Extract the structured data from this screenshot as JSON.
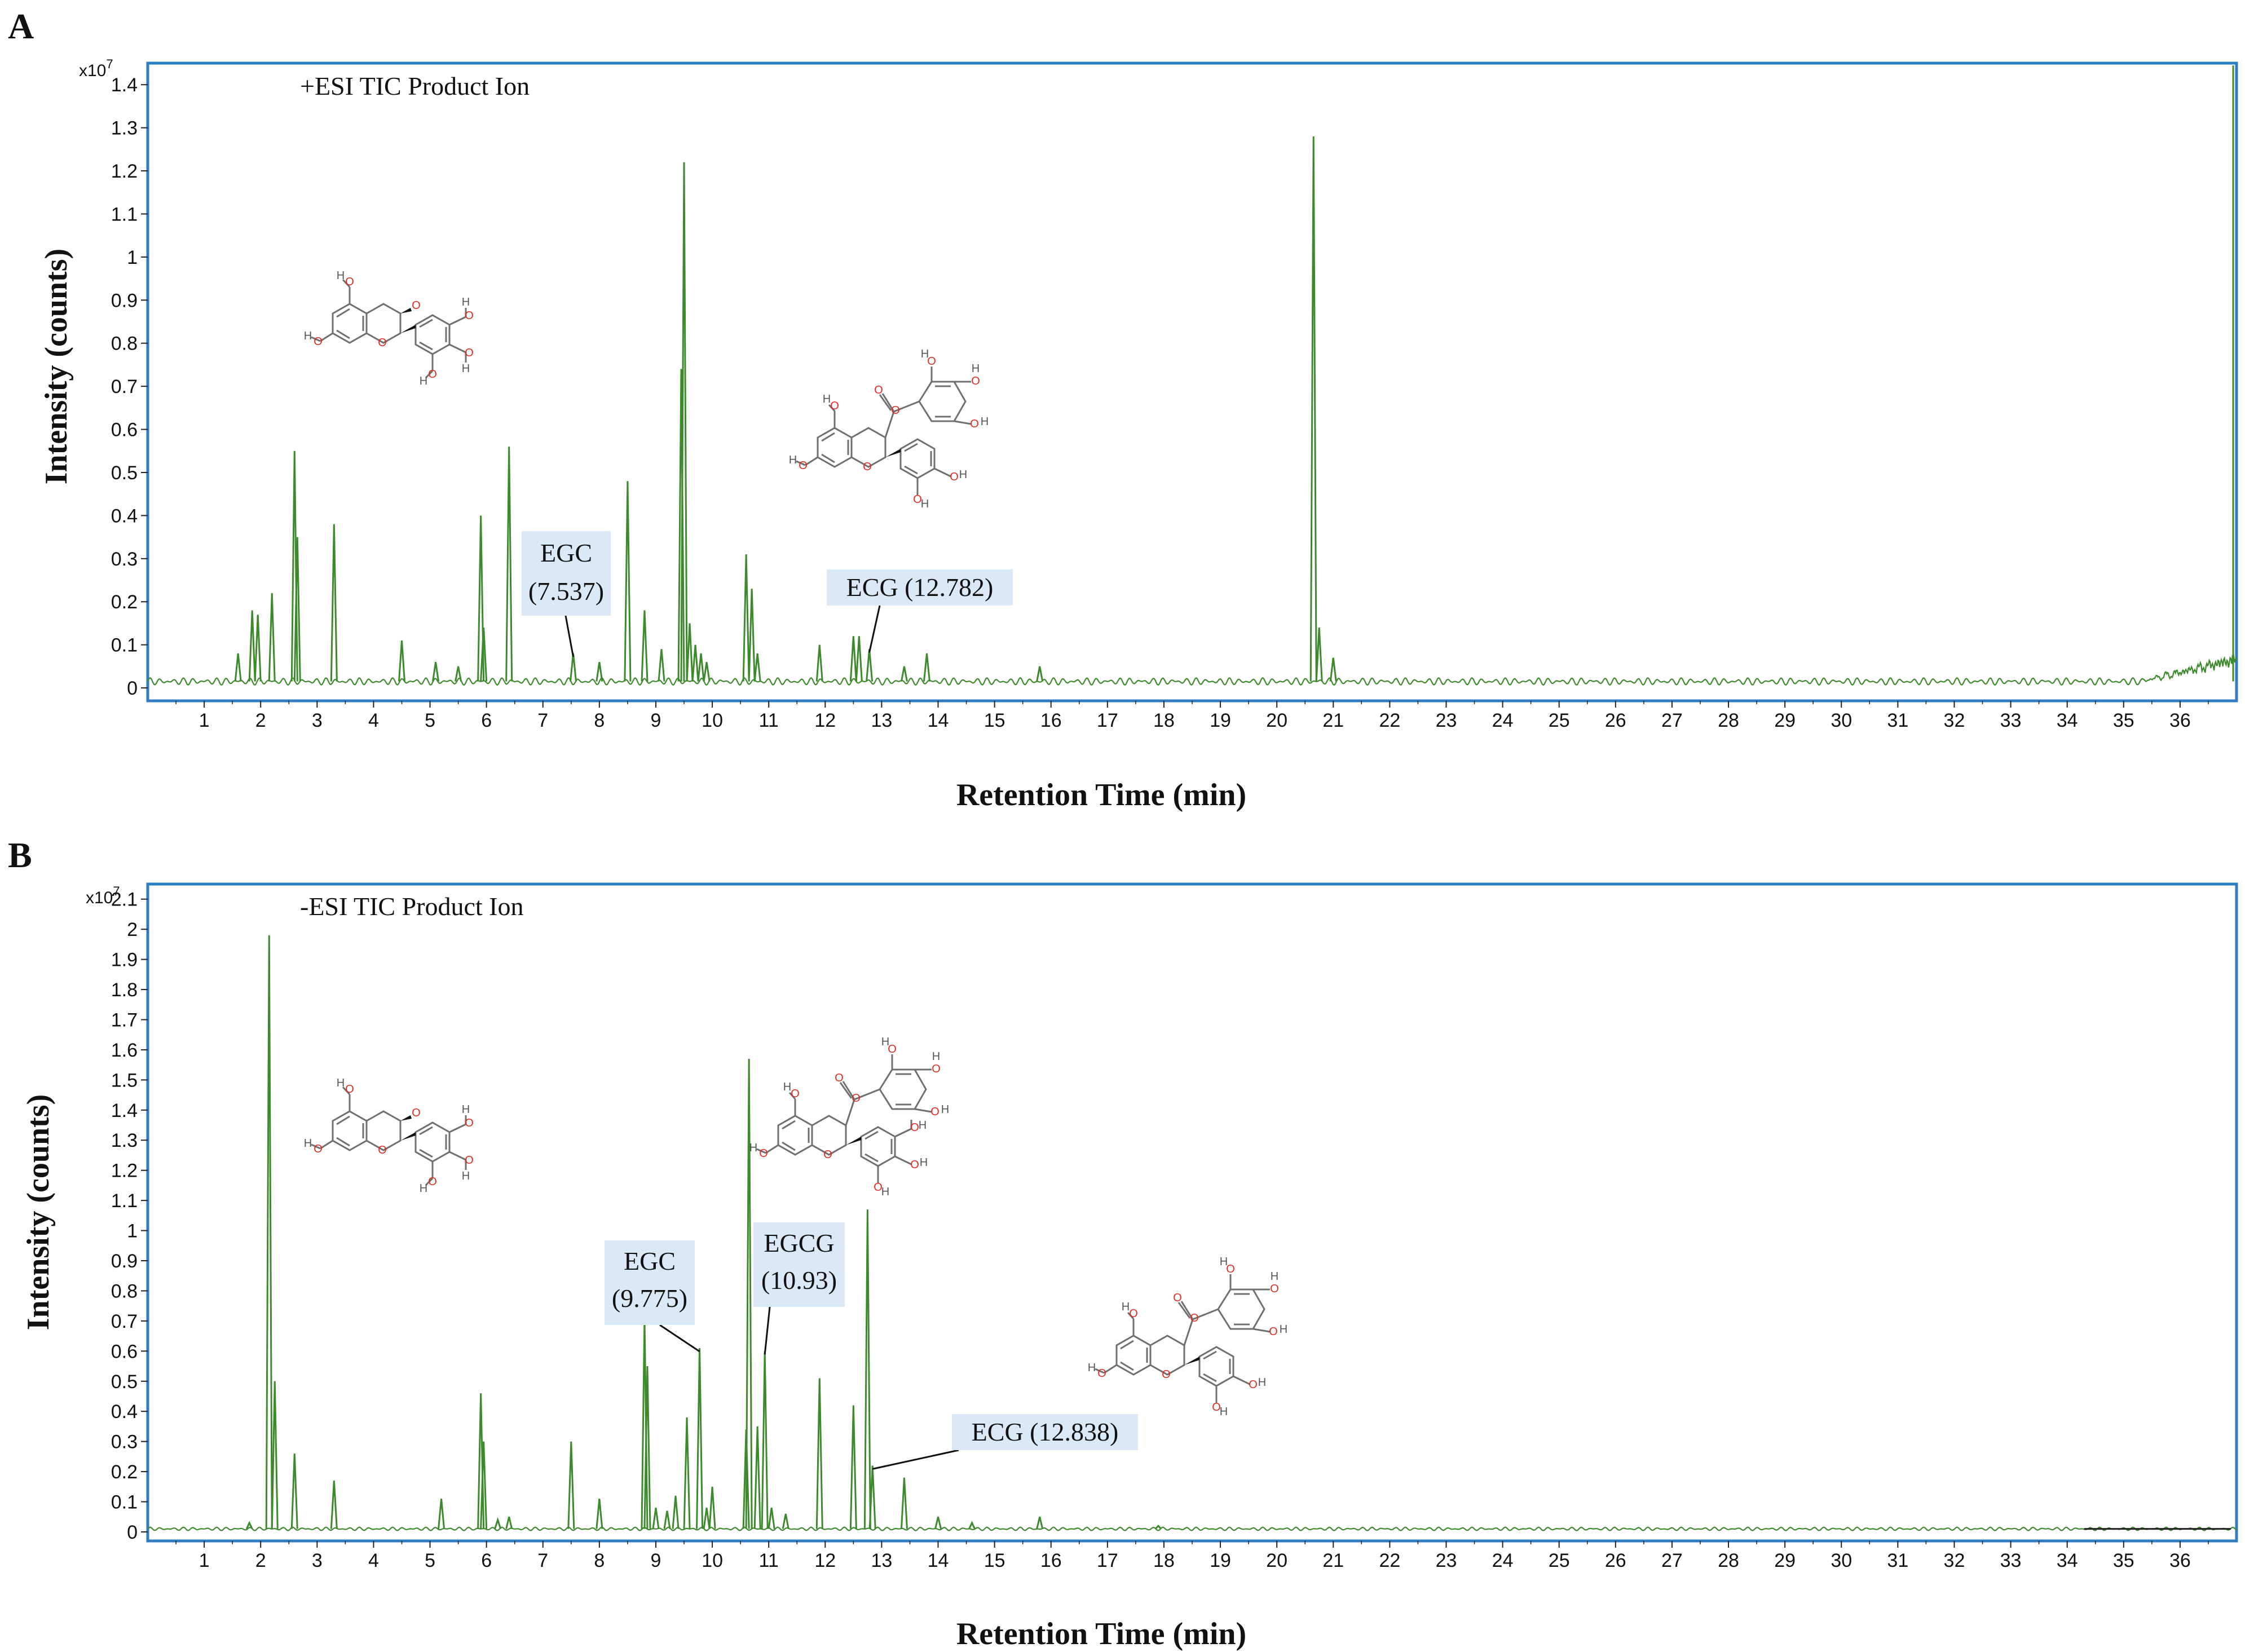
{
  "colors": {
    "frame": "#2f7cc3",
    "trace": "#3c8a2c",
    "label_box": "#dbe9f6",
    "oxygen": "#e0281e",
    "bond": "#6f6f6f"
  },
  "chart_data": [
    {
      "panel": "A",
      "type": "line",
      "title": "+ESI TIC Product Ion",
      "xlabel": "Retention Time (min)",
      "ylabel": "Intensity (counts)",
      "multiplier": {
        "base": "x10",
        "exp": "7"
      },
      "xlim": [
        0,
        37
      ],
      "ylim": [
        -0.03,
        1.45
      ],
      "xticks": [
        1,
        2,
        3,
        4,
        5,
        6,
        7,
        8,
        9,
        10,
        11,
        12,
        13,
        14,
        15,
        16,
        17,
        18,
        19,
        20,
        21,
        22,
        23,
        24,
        25,
        26,
        27,
        28,
        29,
        30,
        31,
        32,
        33,
        34,
        35,
        36
      ],
      "yticks": [
        "0",
        "0.1",
        "0.2",
        "0.3",
        "0.4",
        "0.5",
        "0.6",
        "0.7",
        "0.8",
        "0.9",
        "1",
        "1.1",
        "1.2",
        "1.3",
        "1.4"
      ],
      "baseline": 0.015,
      "peaks": [
        {
          "x": 1.6,
          "y": 0.08
        },
        {
          "x": 1.85,
          "y": 0.18
        },
        {
          "x": 1.95,
          "y": 0.17
        },
        {
          "x": 2.2,
          "y": 0.22
        },
        {
          "x": 2.6,
          "y": 0.55
        },
        {
          "x": 2.65,
          "y": 0.35
        },
        {
          "x": 3.3,
          "y": 0.38
        },
        {
          "x": 4.5,
          "y": 0.11
        },
        {
          "x": 5.1,
          "y": 0.06
        },
        {
          "x": 5.5,
          "y": 0.05
        },
        {
          "x": 5.9,
          "y": 0.4
        },
        {
          "x": 5.95,
          "y": 0.14
        },
        {
          "x": 6.4,
          "y": 0.56
        },
        {
          "x": 7.537,
          "y": 0.08
        },
        {
          "x": 8.0,
          "y": 0.06
        },
        {
          "x": 8.5,
          "y": 0.48
        },
        {
          "x": 8.8,
          "y": 0.18
        },
        {
          "x": 9.1,
          "y": 0.09
        },
        {
          "x": 9.45,
          "y": 0.74
        },
        {
          "x": 9.5,
          "y": 1.22
        },
        {
          "x": 9.6,
          "y": 0.15
        },
        {
          "x": 9.7,
          "y": 0.1
        },
        {
          "x": 9.8,
          "y": 0.08
        },
        {
          "x": 9.9,
          "y": 0.06
        },
        {
          "x": 10.6,
          "y": 0.31
        },
        {
          "x": 10.7,
          "y": 0.23
        },
        {
          "x": 10.8,
          "y": 0.08
        },
        {
          "x": 11.9,
          "y": 0.1
        },
        {
          "x": 12.5,
          "y": 0.12
        },
        {
          "x": 12.6,
          "y": 0.12
        },
        {
          "x": 12.782,
          "y": 0.09
        },
        {
          "x": 13.4,
          "y": 0.05
        },
        {
          "x": 13.8,
          "y": 0.08
        },
        {
          "x": 15.8,
          "y": 0.05
        },
        {
          "x": 20.65,
          "y": 1.28
        },
        {
          "x": 20.75,
          "y": 0.14
        },
        {
          "x": 21.0,
          "y": 0.07
        }
      ],
      "end_ramp": [
        35.3,
        37.0,
        0.06
      ],
      "annotations": [
        {
          "label": "EGC",
          "label2": "(7.537)",
          "x": 7.537
        },
        {
          "label": "ECG (12.782)",
          "label2": "",
          "x": 12.782
        }
      ]
    },
    {
      "panel": "B",
      "type": "line",
      "title": "-ESI TIC Product Ion",
      "xlabel": "Retention Time (min)",
      "ylabel": "Intensity (counts)",
      "multiplier": {
        "base": "x10",
        "exp": "7"
      },
      "xlim": [
        0,
        37
      ],
      "ylim": [
        -0.03,
        2.15
      ],
      "xticks": [
        1,
        2,
        3,
        4,
        5,
        6,
        7,
        8,
        9,
        10,
        11,
        12,
        13,
        14,
        15,
        16,
        17,
        18,
        19,
        20,
        21,
        22,
        23,
        24,
        25,
        26,
        27,
        28,
        29,
        30,
        31,
        32,
        33,
        34,
        35,
        36
      ],
      "yticks": [
        "0",
        "0.1",
        "0.2",
        "0.3",
        "0.4",
        "0.5",
        "0.6",
        "0.7",
        "0.8",
        "0.9",
        "1",
        "1.1",
        "1.2",
        "1.3",
        "1.4",
        "1.5",
        "1.6",
        "1.7",
        "1.8",
        "1.9",
        "2",
        "2.1"
      ],
      "baseline": 0.01,
      "peaks": [
        {
          "x": 1.8,
          "y": 0.03
        },
        {
          "x": 2.15,
          "y": 1.98
        },
        {
          "x": 2.25,
          "y": 0.5
        },
        {
          "x": 2.6,
          "y": 0.26
        },
        {
          "x": 3.3,
          "y": 0.17
        },
        {
          "x": 5.2,
          "y": 0.11
        },
        {
          "x": 5.9,
          "y": 0.46
        },
        {
          "x": 5.95,
          "y": 0.3
        },
        {
          "x": 6.2,
          "y": 0.04
        },
        {
          "x": 6.4,
          "y": 0.05
        },
        {
          "x": 7.5,
          "y": 0.3
        },
        {
          "x": 8.0,
          "y": 0.11
        },
        {
          "x": 8.8,
          "y": 0.71
        },
        {
          "x": 8.85,
          "y": 0.55
        },
        {
          "x": 9.0,
          "y": 0.08
        },
        {
          "x": 9.2,
          "y": 0.07
        },
        {
          "x": 9.35,
          "y": 0.12
        },
        {
          "x": 9.55,
          "y": 0.38
        },
        {
          "x": 9.775,
          "y": 0.61
        },
        {
          "x": 9.9,
          "y": 0.08
        },
        {
          "x": 10.0,
          "y": 0.15
        },
        {
          "x": 10.6,
          "y": 0.34
        },
        {
          "x": 10.65,
          "y": 1.57
        },
        {
          "x": 10.8,
          "y": 0.35
        },
        {
          "x": 10.93,
          "y": 0.6
        },
        {
          "x": 11.05,
          "y": 0.08
        },
        {
          "x": 11.3,
          "y": 0.06
        },
        {
          "x": 11.9,
          "y": 0.51
        },
        {
          "x": 12.5,
          "y": 0.42
        },
        {
          "x": 12.75,
          "y": 1.07
        },
        {
          "x": 12.838,
          "y": 0.22
        },
        {
          "x": 13.4,
          "y": 0.18
        },
        {
          "x": 14.0,
          "y": 0.05
        },
        {
          "x": 14.6,
          "y": 0.03
        },
        {
          "x": 15.8,
          "y": 0.05
        },
        {
          "x": 17.9,
          "y": 0.02
        }
      ],
      "end_ramp": [],
      "annotations": [
        {
          "label": "EGC",
          "label2": "(9.775)",
          "x": 9.775
        },
        {
          "label": "EGCG",
          "label2": "(10.93)",
          "x": 10.93
        },
        {
          "label": "ECG (12.838)",
          "label2": "",
          "x": 12.838
        }
      ]
    }
  ]
}
